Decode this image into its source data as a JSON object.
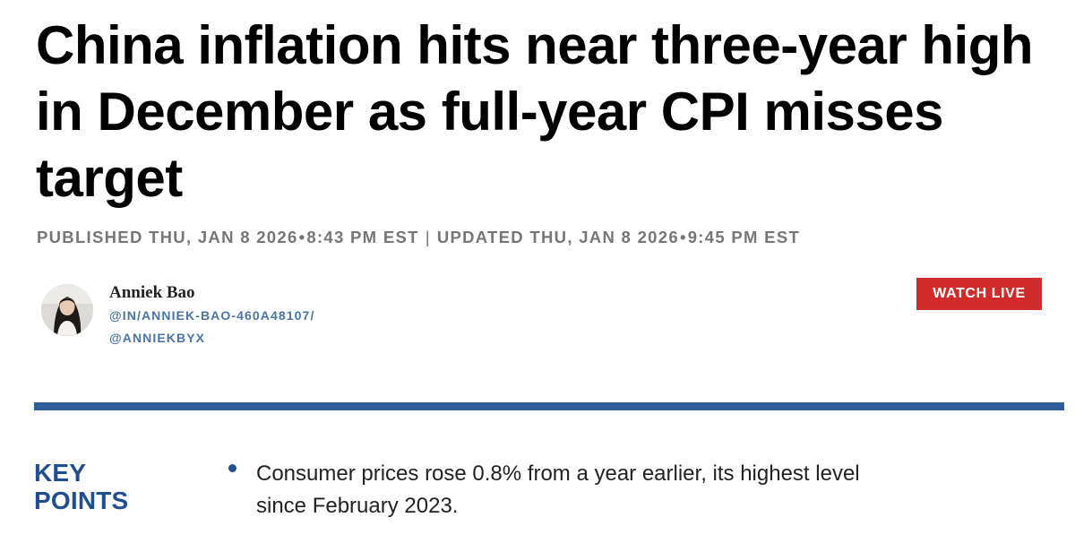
{
  "article": {
    "headline": "China inflation hits near three-year high in December as full-year CPI misses target",
    "published_label": "PUBLISHED THU, JAN 8 2026",
    "published_time": "8:43 PM EST",
    "separator": "|",
    "updated_label": "UPDATED THU, JAN 8 2026",
    "updated_time": "9:45 PM EST",
    "dot": "•"
  },
  "author": {
    "name": "Anniek Bao",
    "handle_linkedin": "@IN/ANNIEK-BAO-460A48107/",
    "handle_twitter": "@ANNIEKBYX",
    "avatar_icon": "author-avatar-photo"
  },
  "watch_live": {
    "label": "WATCH LIVE",
    "color": "#d12b2b"
  },
  "divider": {
    "color": "#2e5d9a"
  },
  "key_points": {
    "heading_line1": "KEY",
    "heading_line2": "POINTS",
    "items": [
      "Consumer prices rose 0.8% from a year earlier, its highest level since February 2023."
    ]
  }
}
